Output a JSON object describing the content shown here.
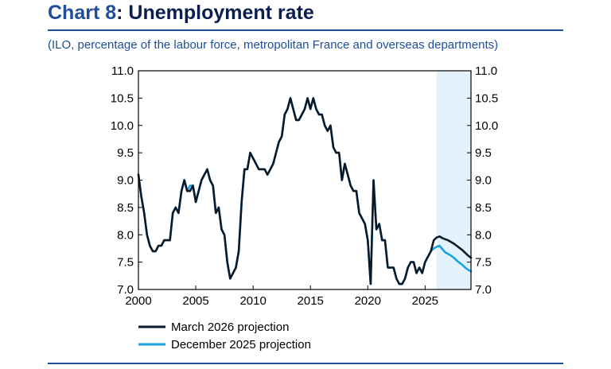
{
  "header": {
    "title_num": "Chart 8",
    "title_rest": ": Unemployment rate",
    "subtitle": "(ILO, percentage of the labour force, metropolitan France and overseas departments)"
  },
  "colors": {
    "march": "#0b1a2a",
    "december": "#1aa3e0",
    "projection_band": "#e4f2fb",
    "accent": "#1f4e9c"
  },
  "chart_data": {
    "type": "line",
    "xlim": [
      2000,
      2029
    ],
    "ylim": [
      7.0,
      11.0
    ],
    "x_ticks": [
      "2000",
      "2005",
      "2010",
      "2015",
      "2020",
      "2025"
    ],
    "y_ticks_left": [
      "7.0",
      "7.5",
      "8.0",
      "8.5",
      "9.0",
      "9.5",
      "10.0",
      "10.5",
      "11.0"
    ],
    "y_ticks_right": [
      "7.0",
      "7.5",
      "8.0",
      "8.5",
      "9.0",
      "9.5",
      "10.0",
      "10.5",
      "11.0"
    ],
    "grid": false,
    "legend_position": "bottom-left",
    "projection_start": 2026.0,
    "series": [
      {
        "name": "March 2026 projection",
        "color_key": "march",
        "points": [
          [
            2000.0,
            9.1
          ],
          [
            2000.25,
            8.7
          ],
          [
            2000.5,
            8.4
          ],
          [
            2000.75,
            8.0
          ],
          [
            2001.0,
            7.8
          ],
          [
            2001.25,
            7.7
          ],
          [
            2001.5,
            7.7
          ],
          [
            2001.75,
            7.8
          ],
          [
            2002.0,
            7.8
          ],
          [
            2002.25,
            7.9
          ],
          [
            2002.5,
            7.9
          ],
          [
            2002.75,
            7.9
          ],
          [
            2003.0,
            8.4
          ],
          [
            2003.25,
            8.5
          ],
          [
            2003.5,
            8.4
          ],
          [
            2003.75,
            8.8
          ],
          [
            2004.0,
            9.0
          ],
          [
            2004.25,
            8.8
          ],
          [
            2004.5,
            8.8
          ],
          [
            2004.75,
            8.9
          ],
          [
            2005.0,
            8.6
          ],
          [
            2005.25,
            8.8
          ],
          [
            2005.5,
            9.0
          ],
          [
            2005.75,
            9.1
          ],
          [
            2006.0,
            9.2
          ],
          [
            2006.25,
            9.0
          ],
          [
            2006.5,
            8.9
          ],
          [
            2006.75,
            8.4
          ],
          [
            2007.0,
            8.5
          ],
          [
            2007.25,
            8.1
          ],
          [
            2007.5,
            8.0
          ],
          [
            2007.75,
            7.5
          ],
          [
            2008.0,
            7.2
          ],
          [
            2008.25,
            7.3
          ],
          [
            2008.5,
            7.4
          ],
          [
            2008.75,
            7.7
          ],
          [
            2009.0,
            8.6
          ],
          [
            2009.25,
            9.2
          ],
          [
            2009.5,
            9.2
          ],
          [
            2009.75,
            9.5
          ],
          [
            2010.0,
            9.4
          ],
          [
            2010.25,
            9.3
          ],
          [
            2010.5,
            9.2
          ],
          [
            2010.75,
            9.2
          ],
          [
            2011.0,
            9.2
          ],
          [
            2011.25,
            9.1
          ],
          [
            2011.5,
            9.2
          ],
          [
            2011.75,
            9.3
          ],
          [
            2012.0,
            9.5
          ],
          [
            2012.25,
            9.7
          ],
          [
            2012.5,
            9.8
          ],
          [
            2012.75,
            10.2
          ],
          [
            2013.0,
            10.3
          ],
          [
            2013.25,
            10.5
          ],
          [
            2013.5,
            10.3
          ],
          [
            2013.75,
            10.1
          ],
          [
            2014.0,
            10.1
          ],
          [
            2014.25,
            10.2
          ],
          [
            2014.5,
            10.3
          ],
          [
            2014.75,
            10.5
          ],
          [
            2015.0,
            10.3
          ],
          [
            2015.25,
            10.5
          ],
          [
            2015.5,
            10.3
          ],
          [
            2015.75,
            10.2
          ],
          [
            2016.0,
            10.2
          ],
          [
            2016.25,
            10.0
          ],
          [
            2016.5,
            9.9
          ],
          [
            2016.75,
            10.0
          ],
          [
            2017.0,
            9.6
          ],
          [
            2017.25,
            9.5
          ],
          [
            2017.5,
            9.5
          ],
          [
            2017.75,
            9.0
          ],
          [
            2018.0,
            9.3
          ],
          [
            2018.25,
            9.1
          ],
          [
            2018.5,
            8.9
          ],
          [
            2018.75,
            8.8
          ],
          [
            2019.0,
            8.8
          ],
          [
            2019.25,
            8.4
          ],
          [
            2019.5,
            8.3
          ],
          [
            2019.75,
            8.2
          ],
          [
            2020.0,
            7.9
          ],
          [
            2020.25,
            7.1
          ],
          [
            2020.5,
            9.0
          ],
          [
            2020.75,
            8.1
          ],
          [
            2021.0,
            8.2
          ],
          [
            2021.25,
            7.9
          ],
          [
            2021.5,
            7.9
          ],
          [
            2021.75,
            7.4
          ],
          [
            2022.0,
            7.4
          ],
          [
            2022.25,
            7.4
          ],
          [
            2022.5,
            7.2
          ],
          [
            2022.75,
            7.1
          ],
          [
            2023.0,
            7.1
          ],
          [
            2023.25,
            7.2
          ],
          [
            2023.5,
            7.4
          ],
          [
            2023.75,
            7.5
          ],
          [
            2024.0,
            7.5
          ],
          [
            2024.25,
            7.3
          ],
          [
            2024.5,
            7.4
          ],
          [
            2024.75,
            7.3
          ],
          [
            2025.0,
            7.5
          ],
          [
            2025.25,
            7.6
          ],
          [
            2025.5,
            7.7
          ],
          [
            2025.75,
            7.9
          ],
          [
            2026.0,
            7.95
          ],
          [
            2026.25,
            7.97
          ],
          [
            2026.5,
            7.94
          ],
          [
            2026.75,
            7.92
          ],
          [
            2027.0,
            7.9
          ],
          [
            2027.25,
            7.87
          ],
          [
            2027.5,
            7.84
          ],
          [
            2027.75,
            7.8
          ],
          [
            2028.0,
            7.76
          ],
          [
            2028.25,
            7.72
          ],
          [
            2028.5,
            7.67
          ],
          [
            2028.75,
            7.62
          ],
          [
            2029.0,
            7.58
          ]
        ]
      },
      {
        "name": "December 2025 projection",
        "color_key": "december",
        "points": [
          [
            2000.0,
            9.1
          ],
          [
            2000.25,
            8.7
          ],
          [
            2000.5,
            8.4
          ],
          [
            2000.75,
            8.0
          ],
          [
            2001.0,
            7.8
          ],
          [
            2001.25,
            7.7
          ],
          [
            2001.5,
            7.7
          ],
          [
            2001.75,
            7.8
          ],
          [
            2002.0,
            7.8
          ],
          [
            2002.25,
            7.9
          ],
          [
            2002.5,
            7.9
          ],
          [
            2002.75,
            7.9
          ],
          [
            2003.0,
            8.4
          ],
          [
            2003.25,
            8.5
          ],
          [
            2003.5,
            8.4
          ],
          [
            2003.75,
            8.8
          ],
          [
            2004.0,
            9.0
          ],
          [
            2004.25,
            8.8
          ],
          [
            2004.5,
            8.9
          ],
          [
            2004.75,
            8.9
          ],
          [
            2005.0,
            8.6
          ],
          [
            2005.25,
            8.8
          ],
          [
            2005.5,
            9.0
          ],
          [
            2005.75,
            9.1
          ],
          [
            2006.0,
            9.2
          ],
          [
            2006.25,
            9.0
          ],
          [
            2006.5,
            8.9
          ],
          [
            2006.75,
            8.4
          ],
          [
            2007.0,
            8.5
          ],
          [
            2007.25,
            8.1
          ],
          [
            2007.5,
            8.0
          ],
          [
            2007.75,
            7.5
          ],
          [
            2008.0,
            7.2
          ],
          [
            2008.25,
            7.3
          ],
          [
            2008.5,
            7.4
          ],
          [
            2008.75,
            7.7
          ],
          [
            2009.0,
            8.6
          ],
          [
            2009.25,
            9.2
          ],
          [
            2009.5,
            9.2
          ],
          [
            2009.75,
            9.5
          ],
          [
            2010.0,
            9.4
          ],
          [
            2010.25,
            9.3
          ],
          [
            2010.5,
            9.2
          ],
          [
            2010.75,
            9.2
          ],
          [
            2011.0,
            9.2
          ],
          [
            2011.25,
            9.1
          ],
          [
            2011.5,
            9.2
          ],
          [
            2011.75,
            9.3
          ],
          [
            2012.0,
            9.5
          ],
          [
            2012.25,
            9.7
          ],
          [
            2012.5,
            9.8
          ],
          [
            2012.75,
            10.2
          ],
          [
            2013.0,
            10.3
          ],
          [
            2013.25,
            10.5
          ],
          [
            2013.5,
            10.3
          ],
          [
            2013.75,
            10.1
          ],
          [
            2014.0,
            10.1
          ],
          [
            2014.25,
            10.2
          ],
          [
            2014.5,
            10.3
          ],
          [
            2014.75,
            10.5
          ],
          [
            2015.0,
            10.3
          ],
          [
            2015.25,
            10.5
          ],
          [
            2015.5,
            10.3
          ],
          [
            2015.75,
            10.2
          ],
          [
            2016.0,
            10.2
          ],
          [
            2016.25,
            10.0
          ],
          [
            2016.5,
            9.9
          ],
          [
            2016.75,
            10.0
          ],
          [
            2017.0,
            9.6
          ],
          [
            2017.25,
            9.5
          ],
          [
            2017.5,
            9.5
          ],
          [
            2017.75,
            9.0
          ],
          [
            2018.0,
            9.3
          ],
          [
            2018.25,
            9.1
          ],
          [
            2018.5,
            8.9
          ],
          [
            2018.75,
            8.8
          ],
          [
            2019.0,
            8.8
          ],
          [
            2019.25,
            8.4
          ],
          [
            2019.5,
            8.3
          ],
          [
            2019.75,
            8.2
          ],
          [
            2020.0,
            7.9
          ],
          [
            2020.25,
            7.1
          ],
          [
            2020.5,
            9.0
          ],
          [
            2020.75,
            8.1
          ],
          [
            2021.0,
            8.2
          ],
          [
            2021.25,
            7.9
          ],
          [
            2021.5,
            7.9
          ],
          [
            2021.75,
            7.4
          ],
          [
            2022.0,
            7.4
          ],
          [
            2022.25,
            7.4
          ],
          [
            2022.5,
            7.2
          ],
          [
            2022.75,
            7.1
          ],
          [
            2023.0,
            7.1
          ],
          [
            2023.25,
            7.2
          ],
          [
            2023.5,
            7.4
          ],
          [
            2023.75,
            7.5
          ],
          [
            2024.0,
            7.5
          ],
          [
            2024.25,
            7.3
          ],
          [
            2024.5,
            7.4
          ],
          [
            2024.75,
            7.3
          ],
          [
            2025.0,
            7.5
          ],
          [
            2025.25,
            7.6
          ],
          [
            2025.5,
            7.7
          ],
          [
            2025.75,
            7.75
          ],
          [
            2026.0,
            7.78
          ],
          [
            2026.25,
            7.8
          ],
          [
            2026.5,
            7.74
          ],
          [
            2026.75,
            7.68
          ],
          [
            2027.0,
            7.65
          ],
          [
            2027.25,
            7.62
          ],
          [
            2027.5,
            7.58
          ],
          [
            2027.75,
            7.53
          ],
          [
            2028.0,
            7.49
          ],
          [
            2028.25,
            7.45
          ],
          [
            2028.5,
            7.4
          ],
          [
            2028.75,
            7.36
          ],
          [
            2029.0,
            7.33
          ]
        ]
      }
    ]
  }
}
